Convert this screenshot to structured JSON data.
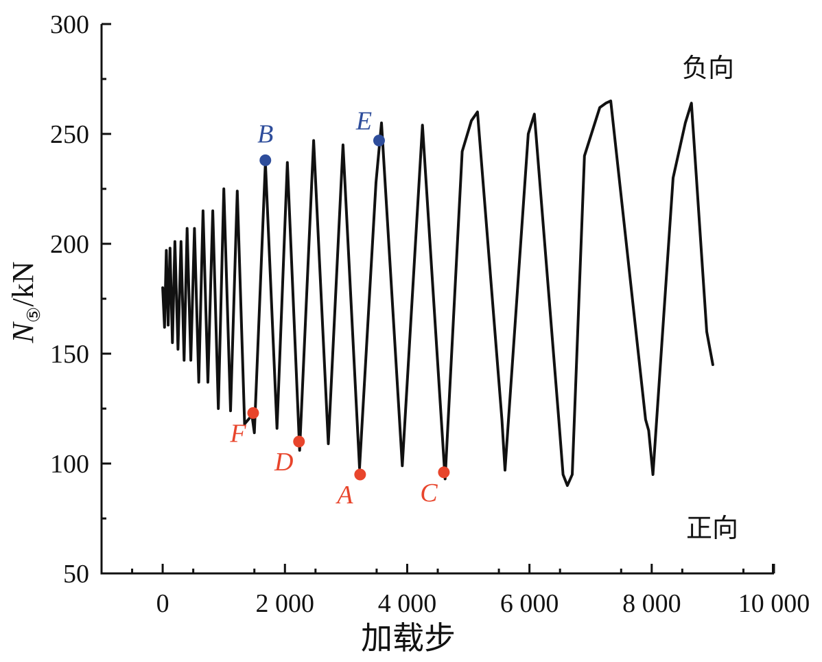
{
  "chart_data": {
    "type": "line",
    "xlabel": "加载步",
    "ylabel": {
      "symbol": "N",
      "subscript": "⑤",
      "unit": "/kN"
    },
    "xlim": [
      -1000,
      10000
    ],
    "ylim": [
      50,
      300
    ],
    "x_ticks": [
      0,
      2000,
      4000,
      6000,
      8000,
      10000
    ],
    "x_tick_labels": [
      "0",
      "2 000",
      "4 000",
      "6 000",
      "8 000",
      "10 000"
    ],
    "y_ticks": [
      50,
      100,
      150,
      200,
      250,
      300
    ],
    "y_tick_labels": [
      "50",
      "100",
      "150",
      "200",
      "250",
      "300"
    ],
    "grid": false,
    "annotations": {
      "top_right": "负向",
      "bottom_right": "正向"
    },
    "series": [
      {
        "color": "#111111",
        "x": [
          0,
          30,
          60,
          90,
          120,
          160,
          200,
          250,
          300,
          350,
          400,
          460,
          520,
          590,
          660,
          740,
          820,
          910,
          1000,
          1110,
          1220,
          1340,
          1460,
          1500,
          1680,
          1870,
          2040,
          2240,
          2470,
          2710,
          2950,
          3220,
          3490,
          3580,
          3920,
          4250,
          4620,
          4900,
          5050,
          5150,
          5550,
          5600,
          5980,
          6080,
          6480,
          6550,
          6620,
          6700,
          6900,
          7150,
          7250,
          7330,
          7900,
          7950,
          8020,
          8350,
          8550,
          8650,
          8900,
          9000
        ],
        "y": [
          180,
          162,
          197,
          163,
          198,
          155,
          201,
          152,
          201,
          147,
          207,
          147,
          207,
          137,
          215,
          137,
          215,
          125,
          225,
          124,
          224,
          118,
          122,
          114,
          237,
          116,
          237,
          106,
          247,
          109,
          245,
          98,
          228,
          255,
          99,
          254,
          93,
          242,
          256,
          260,
          120,
          97,
          250,
          259,
          120,
          95,
          90,
          95,
          240,
          262,
          264,
          265,
          120,
          115,
          95,
          230,
          255,
          264,
          160,
          145
        ]
      }
    ],
    "points": [
      {
        "label": "B",
        "x": 1680,
        "y": 238,
        "color": "#2e4d9b",
        "label_pos": "above"
      },
      {
        "label": "E",
        "x": 3540,
        "y": 247,
        "color": "#2e4d9b",
        "label_pos": "above-left"
      },
      {
        "label": "F",
        "x": 1480,
        "y": 123,
        "color": "#e8452c",
        "label_pos": "below-left"
      },
      {
        "label": "D",
        "x": 2230,
        "y": 110,
        "color": "#e8452c",
        "label_pos": "below-left"
      },
      {
        "label": "A",
        "x": 3230,
        "y": 95,
        "color": "#e8452c",
        "label_pos": "below-left"
      },
      {
        "label": "C",
        "x": 4600,
        "y": 96,
        "color": "#e8452c",
        "label_pos": "below-left"
      }
    ]
  }
}
